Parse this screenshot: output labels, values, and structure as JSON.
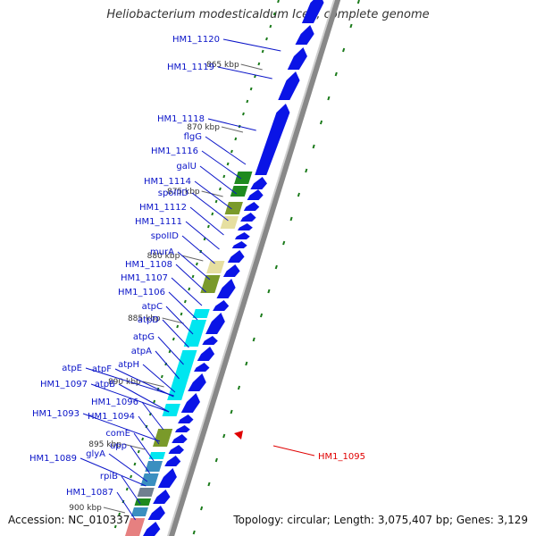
{
  "title": "Heliobacterium modesticaldum Ice1, complete genome",
  "accession": "Accession: NC_010337",
  "topology": "Topology: circular; Length: 3,075,407 bp; Genes: 3,129",
  "colors": {
    "strand": "#888888",
    "forward_gene": "#0a14e6",
    "label": "#0a14c8",
    "highlight": "#e00000",
    "tick": "#1a7a1a",
    "cyan": "#00e6f0",
    "olive": "#7a9a2a",
    "green": "#1f8a1f",
    "khaki": "#e6dfa0",
    "steel": "#3a8fc0",
    "salmon": "#e68080",
    "gray": "#708090"
  },
  "scale": {
    "ticks": [
      {
        "label": "865 kbp"
      },
      {
        "label": "870 kbp"
      },
      {
        "label": "875 kbp"
      },
      {
        "label": "880 kbp"
      },
      {
        "label": "885 kbp"
      },
      {
        "label": "890 kbp"
      },
      {
        "label": "895 kbp"
      },
      {
        "label": "900 kbp"
      }
    ]
  },
  "gene_labels": [
    {
      "name": "HM1_1120"
    },
    {
      "name": "HM1_1119"
    },
    {
      "name": "HM1_1118"
    },
    {
      "name": "flgG"
    },
    {
      "name": "HM1_1116"
    },
    {
      "name": "galU"
    },
    {
      "name": "HM1_1114"
    },
    {
      "name": "spoIIID"
    },
    {
      "name": "HM1_1112"
    },
    {
      "name": "HM1_1111"
    },
    {
      "name": "spoIID"
    },
    {
      "name": "murA"
    },
    {
      "name": "HM1_1108"
    },
    {
      "name": "HM1_1107"
    },
    {
      "name": "HM1_1106"
    },
    {
      "name": "atpC"
    },
    {
      "name": "atpD"
    },
    {
      "name": "atpG"
    },
    {
      "name": "atpA"
    },
    {
      "name": "atpH"
    },
    {
      "name": "atpE"
    },
    {
      "name": "atpF"
    },
    {
      "name": "HM1_1097"
    },
    {
      "name": "atpB"
    },
    {
      "name": "HM1_1096"
    },
    {
      "name": "HM1_1093"
    },
    {
      "name": "HM1_1094"
    },
    {
      "name": "comE"
    },
    {
      "name": "upp"
    },
    {
      "name": "HM1_1089"
    },
    {
      "name": "glyA"
    },
    {
      "name": "rpiB"
    },
    {
      "name": "HM1_1087"
    }
  ],
  "highlight_label": {
    "name": "HM1_1095"
  }
}
